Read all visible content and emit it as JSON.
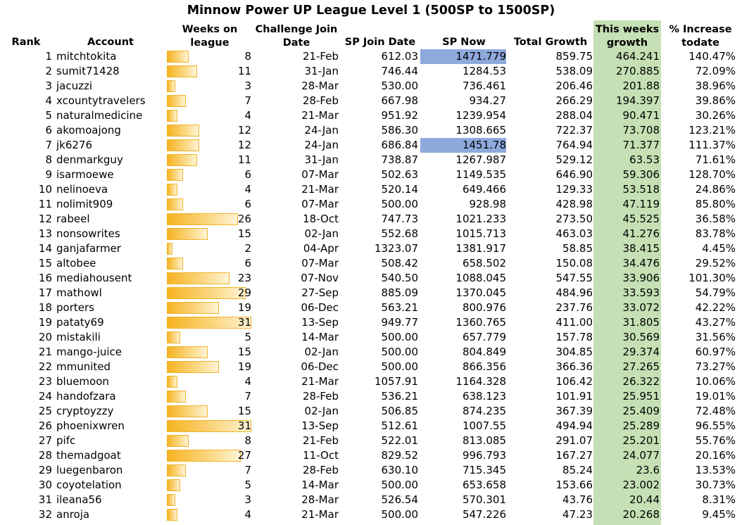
{
  "title": "Minnow Power UP League Level 1 (500SP to 1500SP)",
  "headers": {
    "rank": "Rank",
    "account": "Account",
    "weeks": [
      "Weeks on",
      "league"
    ],
    "join_date": [
      "Challenge Join",
      "Date"
    ],
    "sp_join": "SP Join Date",
    "sp_now": "SP Now",
    "total_growth": "Total Growth",
    "this_week": [
      "This weeks",
      "growth"
    ],
    "pct": [
      "% Increase",
      "todate"
    ]
  },
  "colors": {
    "green_column": "#c5e0b4",
    "highlight": "#8ea9dc",
    "bar": "#f6b321"
  },
  "bar_max_weeks": 31,
  "rows": [
    {
      "rank": "1",
      "account": "mitchtokita",
      "weeks": 8,
      "weeks_label": "8",
      "date": "21-Feb",
      "sp_join": "612.03",
      "sp_now": "1471.779",
      "total": "859.75",
      "week_growth": "464.241",
      "pct": "140.47%",
      "highlight": true
    },
    {
      "rank": "2",
      "account": "sumit71428",
      "weeks": 11,
      "weeks_label": "11",
      "date": "31-Jan",
      "sp_join": "746.44",
      "sp_now": "1284.53",
      "total": "538.09",
      "week_growth": "270.885",
      "pct": "72.09%"
    },
    {
      "rank": "3",
      "account": "jacuzzi",
      "weeks": 3,
      "weeks_label": "3",
      "date": "28-Mar",
      "sp_join": "530.00",
      "sp_now": "736.461",
      "total": "206.46",
      "week_growth": "201.88",
      "pct": "38.96%"
    },
    {
      "rank": "4",
      "account": "xcountytravelers",
      "weeks": 7,
      "weeks_label": "7",
      "date": "28-Feb",
      "sp_join": "667.98",
      "sp_now": "934.27",
      "total": "266.29",
      "week_growth": "194.397",
      "pct": "39.86%"
    },
    {
      "rank": "5",
      "account": "naturalmedicine",
      "weeks": 4,
      "weeks_label": "4",
      "date": "21-Mar",
      "sp_join": "951.92",
      "sp_now": "1239.954",
      "total": "288.04",
      "week_growth": "90.471",
      "pct": "30.26%"
    },
    {
      "rank": "6",
      "account": "akomoajong",
      "weeks": 12,
      "weeks_label": "12",
      "date": "24-Jan",
      "sp_join": "586.30",
      "sp_now": "1308.665",
      "total": "722.37",
      "week_growth": "73.708",
      "pct": "123.21%"
    },
    {
      "rank": "7",
      "account": "jk6276",
      "weeks": 12,
      "weeks_label": "12",
      "date": "24-Jan",
      "sp_join": "686.84",
      "sp_now": "1451.78",
      "total": "764.94",
      "week_growth": "71.377",
      "pct": "111.37%",
      "highlight": true
    },
    {
      "rank": "8",
      "account": "denmarkguy",
      "weeks": 11,
      "weeks_label": "11",
      "date": "31-Jan",
      "sp_join": "738.87",
      "sp_now": "1267.987",
      "total": "529.12",
      "week_growth": "63.53",
      "pct": "71.61%"
    },
    {
      "rank": "9",
      "account": "isarmoewe",
      "weeks": 6,
      "weeks_label": "6",
      "date": "07-Mar",
      "sp_join": "502.63",
      "sp_now": "1149.535",
      "total": "646.90",
      "week_growth": "59.306",
      "pct": "128.70%"
    },
    {
      "rank": "10",
      "account": "nelinoeva",
      "weeks": 4,
      "weeks_label": "4",
      "date": "21-Mar",
      "sp_join": "520.14",
      "sp_now": "649.466",
      "total": "129.33",
      "week_growth": "53.518",
      "pct": "24.86%"
    },
    {
      "rank": "11",
      "account": "nolimit909",
      "weeks": 6,
      "weeks_label": "6",
      "date": "07-Mar",
      "sp_join": "500.00",
      "sp_now": "928.98",
      "total": "428.98",
      "week_growth": "47.119",
      "pct": "85.80%"
    },
    {
      "rank": "12",
      "account": "rabeel",
      "weeks": 26,
      "weeks_label": "26",
      "date": "18-Oct",
      "sp_join": "747.73",
      "sp_now": "1021.233",
      "total": "273.50",
      "week_growth": "45.525",
      "pct": "36.58%"
    },
    {
      "rank": "13",
      "account": "nonsowrites",
      "weeks": 15,
      "weeks_label": "15",
      "date": "02-Jan",
      "sp_join": "552.68",
      "sp_now": "1015.713",
      "total": "463.03",
      "week_growth": "41.276",
      "pct": "83.78%"
    },
    {
      "rank": "14",
      "account": "ganjafarmer",
      "weeks": 2,
      "weeks_label": "2",
      "date": "04-Apr",
      "sp_join": "1323.07",
      "sp_now": "1381.917",
      "total": "58.85",
      "week_growth": "38.415",
      "pct": "4.45%"
    },
    {
      "rank": "15",
      "account": "altobee",
      "weeks": 6,
      "weeks_label": "6",
      "date": "07-Mar",
      "sp_join": "508.42",
      "sp_now": "658.502",
      "total": "150.08",
      "week_growth": "34.476",
      "pct": "29.52%"
    },
    {
      "rank": "16",
      "account": "mediahousent",
      "weeks": 23,
      "weeks_label": "23",
      "date": "07-Nov",
      "sp_join": "540.50",
      "sp_now": "1088.045",
      "total": "547.55",
      "week_growth": "33.906",
      "pct": "101.30%"
    },
    {
      "rank": "17",
      "account": "mathowl",
      "weeks": 29,
      "weeks_label": "29",
      "date": "27-Sep",
      "sp_join": "885.09",
      "sp_now": "1370.045",
      "total": "484.96",
      "week_growth": "33.593",
      "pct": "54.79%"
    },
    {
      "rank": "18",
      "account": "porters",
      "weeks": 19,
      "weeks_label": "19",
      "date": "06-Dec",
      "sp_join": "563.21",
      "sp_now": "800.976",
      "total": "237.76",
      "week_growth": "33.072",
      "pct": "42.22%"
    },
    {
      "rank": "19",
      "account": "pataty69",
      "weeks": 31,
      "weeks_label": "31",
      "date": "13-Sep",
      "sp_join": "949.77",
      "sp_now": "1360.765",
      "total": "411.00",
      "week_growth": "31.805",
      "pct": "43.27%"
    },
    {
      "rank": "20",
      "account": "mistakili",
      "weeks": 5,
      "weeks_label": "5",
      "date": "14-Mar",
      "sp_join": "500.00",
      "sp_now": "657.779",
      "total": "157.78",
      "week_growth": "30.569",
      "pct": "31.56%"
    },
    {
      "rank": "21",
      "account": "mango-juice",
      "weeks": 15,
      "weeks_label": "15",
      "date": "02-Jan",
      "sp_join": "500.00",
      "sp_now": "804.849",
      "total": "304.85",
      "week_growth": "29.374",
      "pct": "60.97%"
    },
    {
      "rank": "22",
      "account": "mmunited",
      "weeks": 19,
      "weeks_label": "19",
      "date": "06-Dec",
      "sp_join": "500.00",
      "sp_now": "866.356",
      "total": "366.36",
      "week_growth": "27.265",
      "pct": "73.27%"
    },
    {
      "rank": "23",
      "account": "bluemoon",
      "weeks": 4,
      "weeks_label": "4",
      "date": "21-Mar",
      "sp_join": "1057.91",
      "sp_now": "1164.328",
      "total": "106.42",
      "week_growth": "26.322",
      "pct": "10.06%"
    },
    {
      "rank": "24",
      "account": "handofzara",
      "weeks": 7,
      "weeks_label": "7",
      "date": "28-Feb",
      "sp_join": "536.21",
      "sp_now": "638.123",
      "total": "101.91",
      "week_growth": "25.951",
      "pct": "19.01%"
    },
    {
      "rank": "25",
      "account": "cryptoyzzy",
      "weeks": 15,
      "weeks_label": "15",
      "date": "02-Jan",
      "sp_join": "506.85",
      "sp_now": "874.235",
      "total": "367.39",
      "week_growth": "25.409",
      "pct": "72.48%"
    },
    {
      "rank": "26",
      "account": "phoenixwren",
      "weeks": 31,
      "weeks_label": "31",
      "date": "13-Sep",
      "sp_join": "512.61",
      "sp_now": "1007.55",
      "total": "494.94",
      "week_growth": "25.289",
      "pct": "96.55%"
    },
    {
      "rank": "27",
      "account": "pifc",
      "weeks": 8,
      "weeks_label": "8",
      "date": "21-Feb",
      "sp_join": "522.01",
      "sp_now": "813.085",
      "total": "291.07",
      "week_growth": "25.201",
      "pct": "55.76%"
    },
    {
      "rank": "28",
      "account": "themadgoat",
      "weeks": 27,
      "weeks_label": "27",
      "date": "11-Oct",
      "sp_join": "829.52",
      "sp_now": "996.793",
      "total": "167.27",
      "week_growth": "24.077",
      "pct": "20.16%"
    },
    {
      "rank": "29",
      "account": "luegenbaron",
      "weeks": 7,
      "weeks_label": "7",
      "date": "28-Feb",
      "sp_join": "630.10",
      "sp_now": "715.345",
      "total": "85.24",
      "week_growth": "23.6",
      "pct": "13.53%"
    },
    {
      "rank": "30",
      "account": "coyotelation",
      "weeks": 5,
      "weeks_label": "5",
      "date": "14-Mar",
      "sp_join": "500.00",
      "sp_now": "653.658",
      "total": "153.66",
      "week_growth": "23.002",
      "pct": "30.73%"
    },
    {
      "rank": "31",
      "account": "ileana56",
      "weeks": 3,
      "weeks_label": "3",
      "date": "28-Mar",
      "sp_join": "526.54",
      "sp_now": "570.301",
      "total": "43.76",
      "week_growth": "20.44",
      "pct": "8.31%"
    },
    {
      "rank": "32",
      "account": "anroja",
      "weeks": 4,
      "weeks_label": "4",
      "date": "21-Mar",
      "sp_join": "500.00",
      "sp_now": "547.226",
      "total": "47.23",
      "week_growth": "20.268",
      "pct": "9.45%"
    }
  ]
}
